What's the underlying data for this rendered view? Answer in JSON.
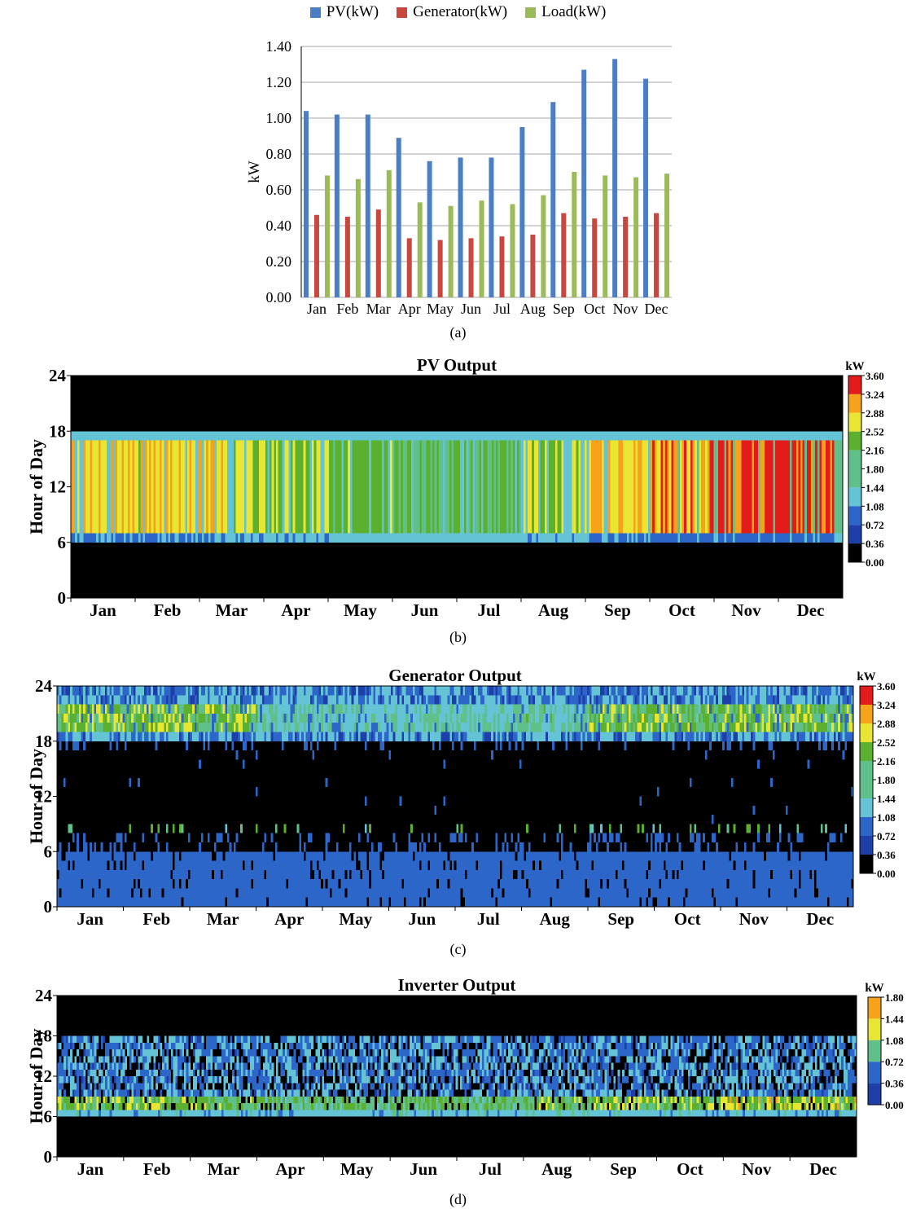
{
  "colorscale": [
    "#000000",
    "#1f3fa8",
    "#2d66c9",
    "#64c4d6",
    "#5fc08a",
    "#5cb030",
    "#e8e632",
    "#f6a21b",
    "#e31b1b"
  ],
  "chart_data": [
    {
      "panel": "a",
      "type": "bar",
      "caption": "(a)",
      "ylabel": "kW",
      "xlabel": "",
      "ylim": [
        0,
        1.4
      ],
      "yticks": [
        "0.00",
        "0.20",
        "0.40",
        "0.60",
        "0.80",
        "1.00",
        "1.20",
        "1.40"
      ],
      "grid": true,
      "legend_position": "top-center",
      "categories": [
        "Jan",
        "Feb",
        "Mar",
        "Apr",
        "May",
        "Jun",
        "Jul",
        "Aug",
        "Sep",
        "Oct",
        "Nov",
        "Dec"
      ],
      "series": [
        {
          "name": "PV(kW)",
          "color": "#4a7ec6",
          "values": [
            1.04,
            1.02,
            1.02,
            0.89,
            0.76,
            0.78,
            0.78,
            0.95,
            1.09,
            1.27,
            1.33,
            1.22
          ]
        },
        {
          "name": "Generator(kW)",
          "color": "#c8473f",
          "values": [
            0.46,
            0.45,
            0.49,
            0.33,
            0.32,
            0.33,
            0.34,
            0.35,
            0.47,
            0.44,
            0.45,
            0.47
          ]
        },
        {
          "name": "Load(kW)",
          "color": "#9bbb59",
          "values": [
            0.68,
            0.66,
            0.71,
            0.53,
            0.51,
            0.54,
            0.52,
            0.57,
            0.7,
            0.68,
            0.67,
            0.69
          ]
        }
      ]
    },
    {
      "panel": "b",
      "type": "heatmap",
      "title": "PV Output",
      "caption": "(b)",
      "ylabel": "Hour of Day",
      "yticks": [
        "0",
        "6",
        "12",
        "18",
        "24"
      ],
      "ylim": [
        0,
        24
      ],
      "xticks": [
        "Jan",
        "Feb",
        "Mar",
        "Apr",
        "May",
        "Jun",
        "Jul",
        "Aug",
        "Sep",
        "Oct",
        "Nov",
        "Dec"
      ],
      "colorbar_unit": "kW",
      "colorbar_max": 3.6,
      "colorbar_ticks": [
        "3.60",
        "3.24",
        "2.88",
        "2.52",
        "2.16",
        "1.80",
        "1.44",
        "1.08",
        "0.72",
        "0.36",
        "0.00"
      ],
      "active_hours": [
        6,
        18
      ],
      "daily_peak_kw_by_month": [
        2.6,
        2.6,
        2.5,
        2.2,
        2.0,
        1.8,
        1.9,
        2.3,
        2.6,
        3.0,
        3.4,
        3.5
      ]
    },
    {
      "panel": "c",
      "type": "heatmap",
      "title": "Generator Output",
      "caption": "(c)",
      "ylabel": "Hour of Day",
      "yticks": [
        "0",
        "6",
        "12",
        "18",
        "24"
      ],
      "ylim": [
        0,
        24
      ],
      "xticks": [
        "Jan",
        "Feb",
        "Mar",
        "Apr",
        "May",
        "Jun",
        "Jul",
        "Aug",
        "Sep",
        "Oct",
        "Nov",
        "Dec"
      ],
      "colorbar_unit": "kW",
      "colorbar_max": 3.6,
      "colorbar_ticks": [
        "3.60",
        "3.24",
        "2.88",
        "2.52",
        "2.16",
        "1.80",
        "1.44",
        "1.08",
        "0.72",
        "0.36",
        "0.00"
      ],
      "evening_peak_kw_by_month": [
        2.4,
        2.3,
        2.3,
        1.6,
        1.4,
        1.5,
        1.6,
        1.7,
        2.3,
        2.2,
        2.3,
        2.3
      ]
    },
    {
      "panel": "d",
      "type": "heatmap",
      "title": "Inverter Output",
      "caption": "(d)",
      "ylabel": "Hour of Day",
      "yticks": [
        "0",
        "6",
        "12",
        "18",
        "24"
      ],
      "ylim": [
        0,
        24
      ],
      "xticks": [
        "Jan",
        "Feb",
        "Mar",
        "Apr",
        "May",
        "Jun",
        "Jul",
        "Aug",
        "Sep",
        "Oct",
        "Nov",
        "Dec"
      ],
      "colorbar_unit": "kW",
      "colorbar_max": 1.8,
      "colorbar_ticks": [
        "1.80",
        "1.44",
        "1.08",
        "0.72",
        "0.36",
        "0.00"
      ],
      "active_hours": [
        6,
        18
      ],
      "morning_peak_hours": [
        7,
        9
      ],
      "morning_peak_kw_by_month": [
        1.1,
        1.1,
        1.0,
        0.9,
        0.9,
        0.9,
        0.9,
        1.0,
        1.1,
        1.1,
        1.2,
        1.2
      ]
    }
  ]
}
